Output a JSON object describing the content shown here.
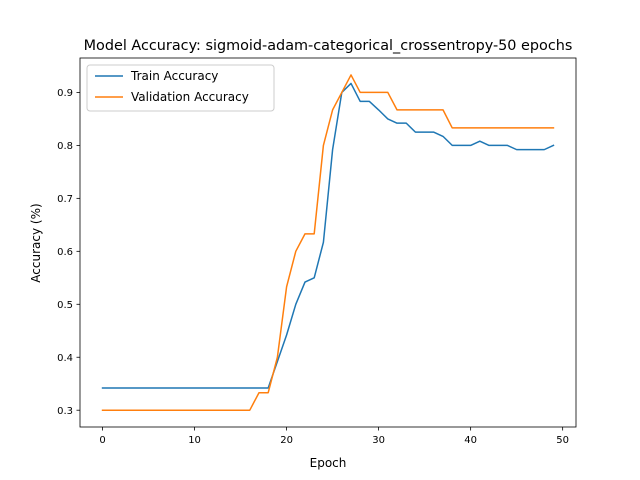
{
  "chart_data": {
    "type": "line",
    "title": "Model Accuracy: sigmoid-adam-categorical_crossentropy-50 epochs",
    "xlabel": "Epoch",
    "ylabel": "Accuracy (%)",
    "xlim": [
      -2.45,
      51.45
    ],
    "ylim": [
      0.2683,
      0.965
    ],
    "xticks": [
      0,
      10,
      20,
      30,
      40,
      50
    ],
    "yticks": [
      0.3,
      0.4,
      0.5,
      0.6,
      0.7,
      0.8,
      0.9
    ],
    "xtick_labels": [
      "0",
      "10",
      "20",
      "30",
      "40",
      "50"
    ],
    "ytick_labels": [
      "0.3",
      "0.4",
      "0.5",
      "0.6",
      "0.7",
      "0.8",
      "0.9"
    ],
    "grid": false,
    "legend_position": "upper left",
    "x": [
      0,
      1,
      2,
      3,
      4,
      5,
      6,
      7,
      8,
      9,
      10,
      11,
      12,
      13,
      14,
      15,
      16,
      17,
      18,
      19,
      20,
      21,
      22,
      23,
      24,
      25,
      26,
      27,
      28,
      29,
      30,
      31,
      32,
      33,
      34,
      35,
      36,
      37,
      38,
      39,
      40,
      41,
      42,
      43,
      44,
      45,
      46,
      47,
      48,
      49
    ],
    "series": [
      {
        "name": "Train Accuracy",
        "color": "#1f77b4",
        "values": [
          0.342,
          0.342,
          0.342,
          0.342,
          0.342,
          0.342,
          0.342,
          0.342,
          0.342,
          0.342,
          0.342,
          0.342,
          0.342,
          0.342,
          0.342,
          0.342,
          0.342,
          0.342,
          0.342,
          0.392,
          0.442,
          0.5,
          0.542,
          0.55,
          0.617,
          0.792,
          0.9,
          0.917,
          0.883,
          0.883,
          0.867,
          0.85,
          0.842,
          0.842,
          0.825,
          0.825,
          0.825,
          0.817,
          0.8,
          0.8,
          0.8,
          0.808,
          0.8,
          0.8,
          0.8,
          0.792,
          0.792,
          0.792,
          0.792,
          0.8
        ]
      },
      {
        "name": "Validation Accuracy",
        "color": "#ff7f0e",
        "values": [
          0.3,
          0.3,
          0.3,
          0.3,
          0.3,
          0.3,
          0.3,
          0.3,
          0.3,
          0.3,
          0.3,
          0.3,
          0.3,
          0.3,
          0.3,
          0.3,
          0.3,
          0.333,
          0.333,
          0.4,
          0.533,
          0.6,
          0.633,
          0.633,
          0.8,
          0.867,
          0.9,
          0.933,
          0.9,
          0.9,
          0.9,
          0.9,
          0.867,
          0.867,
          0.867,
          0.867,
          0.867,
          0.867,
          0.833,
          0.833,
          0.833,
          0.833,
          0.833,
          0.833,
          0.833,
          0.833,
          0.833,
          0.833,
          0.833,
          0.833
        ]
      }
    ]
  }
}
